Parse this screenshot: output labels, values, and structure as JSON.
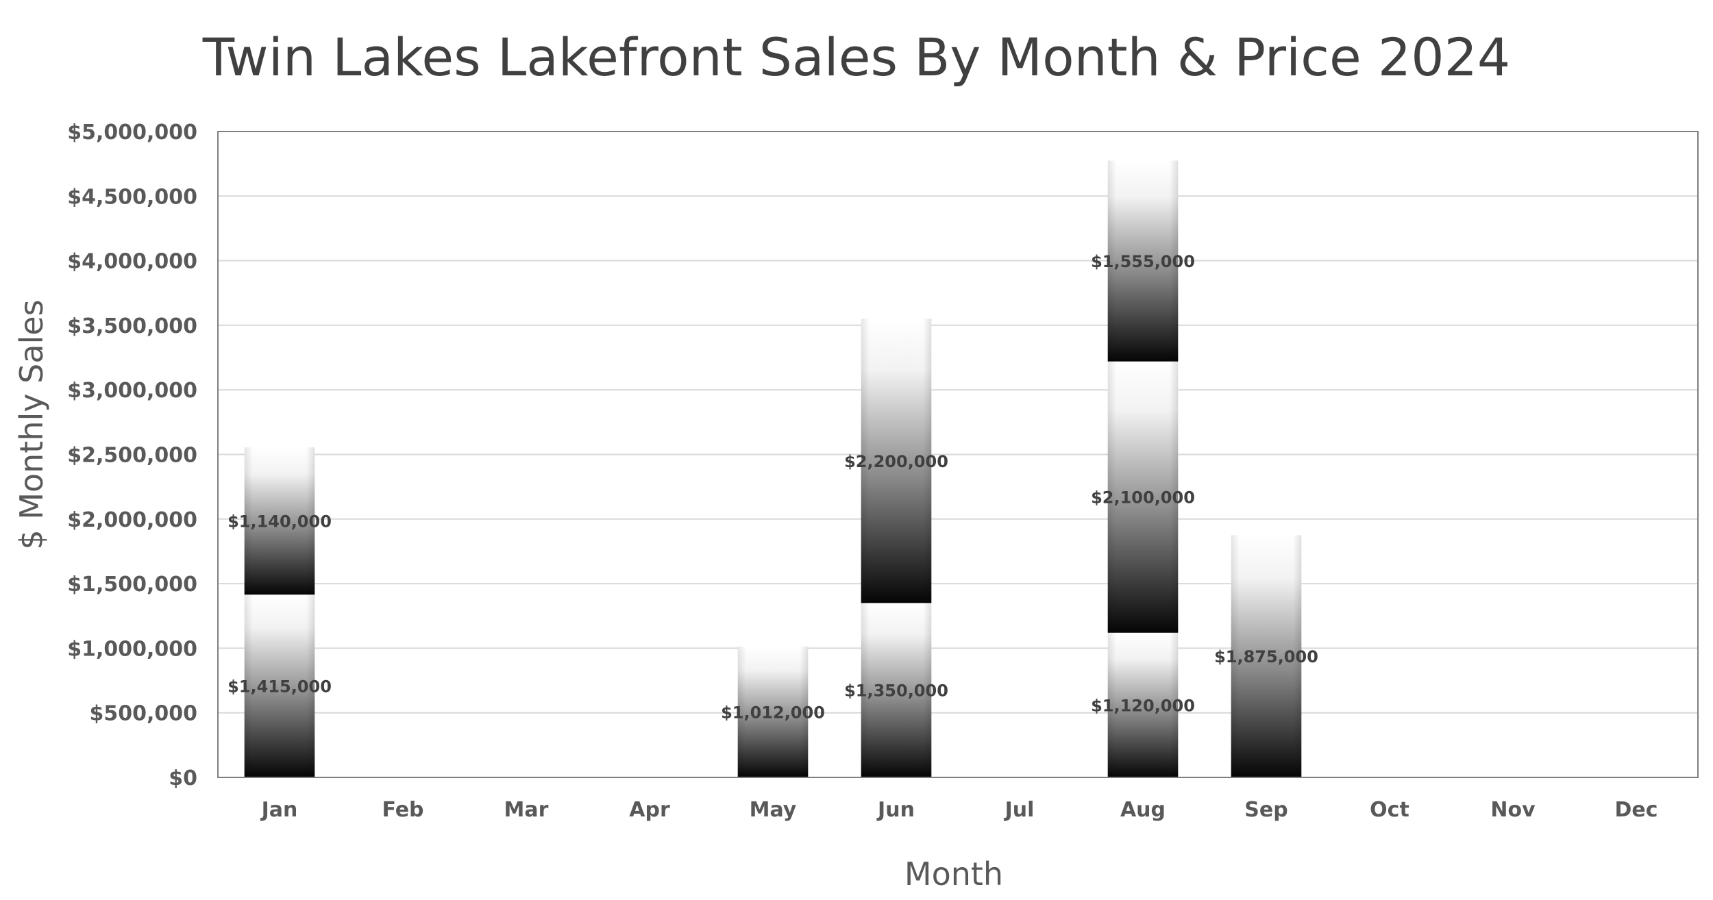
{
  "chart_data": {
    "type": "bar",
    "stacked": true,
    "title": "Twin Lakes Lakefront Sales By Month & Price 2024",
    "xlabel": "Month",
    "ylabel": "$ Monthly Sales",
    "categories": [
      "Jan",
      "Feb",
      "Mar",
      "Apr",
      "May",
      "Jun",
      "Jul",
      "Aug",
      "Sep",
      "Oct",
      "Nov",
      "Dec"
    ],
    "ylim": [
      0,
      5000000
    ],
    "ytick_step": 500000,
    "yticks": [
      "$0",
      "$500,000",
      "$1,000,000",
      "$1,500,000",
      "$2,000,000",
      "$2,500,000",
      "$3,000,000",
      "$3,500,000",
      "$4,000,000",
      "$4,500,000",
      "$5,000,000"
    ],
    "grid": true,
    "legend": "none",
    "stacks": [
      {
        "month": "Jan",
        "segments": [
          {
            "value": 1415000,
            "label": "$1,415,000"
          },
          {
            "value": 1140000,
            "label": "$1,140,000"
          }
        ]
      },
      {
        "month": "May",
        "segments": [
          {
            "value": 1012000,
            "label": "$1,012,000"
          }
        ]
      },
      {
        "month": "Jun",
        "segments": [
          {
            "value": 1350000,
            "label": "$1,350,000"
          },
          {
            "value": 2200000,
            "label": "$2,200,000"
          }
        ]
      },
      {
        "month": "Aug",
        "segments": [
          {
            "value": 1120000,
            "label": "$1,120,000"
          },
          {
            "value": 2100000,
            "label": "$2,100,000"
          },
          {
            "value": 1555000,
            "label": "$1,555,000"
          }
        ]
      },
      {
        "month": "Sep",
        "segments": [
          {
            "value": 1875000,
            "label": "$1,875,000"
          }
        ]
      }
    ],
    "colors": {
      "bar_top": "#ffffff",
      "bar_mid": "#7f7f7f",
      "bar_bottom": "#000000",
      "grid": "#d9d9d9",
      "axis": "#7f7f7f",
      "text": "#595959"
    }
  }
}
